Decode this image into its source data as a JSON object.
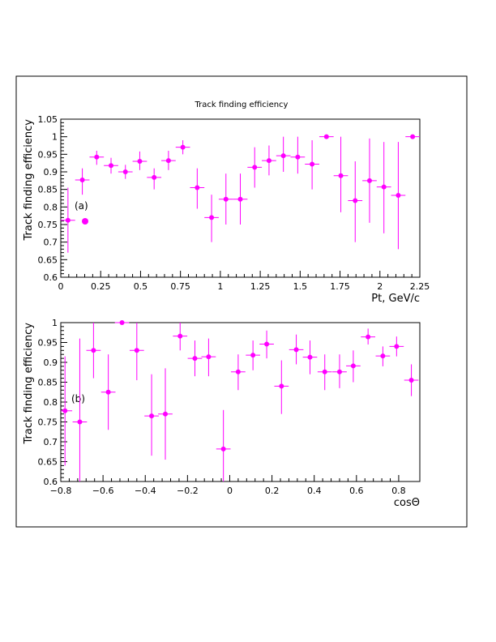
{
  "figure_title": "Track finding efficiency",
  "colors": {
    "marker": "#ff00ff",
    "axis": "#000000",
    "background": "#ffffff"
  },
  "chart_data": [
    {
      "type": "scatter",
      "panel_label": "(a)",
      "xlabel": "Pt, GeV/c",
      "ylabel": "Track finding efficiency",
      "xlim": [
        0,
        2.25
      ],
      "ylim": [
        0.6,
        1.05
      ],
      "xticks": [
        0,
        0.25,
        0.5,
        0.75,
        1,
        1.25,
        1.5,
        1.75,
        2,
        2.25
      ],
      "xtick_labels": [
        "0",
        "0.25",
        "0.5",
        "0.75",
        "1",
        "1.25",
        "1.5",
        "1.75",
        "2",
        "2.25"
      ],
      "yticks": [
        0.6,
        0.65,
        0.7,
        0.75,
        0.8,
        0.85,
        0.9,
        0.95,
        1,
        1.05
      ],
      "ytick_labels": [
        "0.6",
        "0.65",
        "0.7",
        "0.75",
        "0.8",
        "0.85",
        "0.9",
        "0.95",
        "1",
        "1.05"
      ],
      "bin_half_width": 0.045,
      "legend_marker": true,
      "points": [
        {
          "x": 0.045,
          "y": 0.762,
          "lo": 0.67,
          "hi": 0.855
        },
        {
          "x": 0.135,
          "y": 0.877,
          "lo": 0.835,
          "hi": 0.91
        },
        {
          "x": 0.225,
          "y": 0.942,
          "lo": 0.92,
          "hi": 0.96
        },
        {
          "x": 0.315,
          "y": 0.918,
          "lo": 0.895,
          "hi": 0.94
        },
        {
          "x": 0.405,
          "y": 0.9,
          "lo": 0.88,
          "hi": 0.92
        },
        {
          "x": 0.495,
          "y": 0.93,
          "lo": 0.905,
          "hi": 0.958
        },
        {
          "x": 0.585,
          "y": 0.884,
          "lo": 0.85,
          "hi": 0.91
        },
        {
          "x": 0.675,
          "y": 0.932,
          "lo": 0.905,
          "hi": 0.96
        },
        {
          "x": 0.765,
          "y": 0.97,
          "lo": 0.95,
          "hi": 0.99
        },
        {
          "x": 0.855,
          "y": 0.855,
          "lo": 0.795,
          "hi": 0.91
        },
        {
          "x": 0.945,
          "y": 0.77,
          "lo": 0.7,
          "hi": 0.835
        },
        {
          "x": 1.035,
          "y": 0.822,
          "lo": 0.75,
          "hi": 0.895
        },
        {
          "x": 1.125,
          "y": 0.822,
          "lo": 0.75,
          "hi": 0.895
        },
        {
          "x": 1.215,
          "y": 0.913,
          "lo": 0.855,
          "hi": 0.97
        },
        {
          "x": 1.305,
          "y": 0.932,
          "lo": 0.89,
          "hi": 0.975
        },
        {
          "x": 1.395,
          "y": 0.946,
          "lo": 0.9,
          "hi": 1.0
        },
        {
          "x": 1.485,
          "y": 0.942,
          "lo": 0.895,
          "hi": 1.0
        },
        {
          "x": 1.575,
          "y": 0.922,
          "lo": 0.85,
          "hi": 0.99
        },
        {
          "x": 1.665,
          "y": 1.0,
          "lo": 1.0,
          "hi": 1.0
        },
        {
          "x": 1.755,
          "y": 0.889,
          "lo": 0.785,
          "hi": 1.0
        },
        {
          "x": 1.845,
          "y": 0.818,
          "lo": 0.7,
          "hi": 0.93
        },
        {
          "x": 1.935,
          "y": 0.875,
          "lo": 0.755,
          "hi": 0.995
        },
        {
          "x": 2.025,
          "y": 0.857,
          "lo": 0.725,
          "hi": 0.985
        },
        {
          "x": 2.115,
          "y": 0.833,
          "lo": 0.68,
          "hi": 0.985
        },
        {
          "x": 2.205,
          "y": 1.0,
          "lo": 1.0,
          "hi": 1.0
        }
      ]
    },
    {
      "type": "scatter",
      "panel_label": "(b)",
      "xlabel": "cosΘ",
      "ylabel": "Track finding efficiency",
      "xlim": [
        -0.8,
        0.9
      ],
      "ylim": [
        0.6,
        1.0
      ],
      "xticks": [
        -0.8,
        -0.6,
        -0.4,
        -0.2,
        0,
        0.2,
        0.4,
        0.6,
        0.8
      ],
      "xtick_labels": [
        "−0.8",
        "−0.6",
        "−0.4",
        "−0.2",
        "0",
        "0.2",
        "0.4",
        "0.6",
        "0.8"
      ],
      "yticks": [
        0.6,
        0.65,
        0.7,
        0.75,
        0.8,
        0.85,
        0.9,
        0.95,
        1
      ],
      "ytick_labels": [
        "0.6",
        "0.65",
        "0.7",
        "0.75",
        "0.8",
        "0.85",
        "0.9",
        "0.95",
        "1"
      ],
      "bin_half_width": 0.034,
      "legend_marker": false,
      "points": [
        {
          "x": -0.78,
          "y": 0.778,
          "lo": 0.64,
          "hi": 0.915
        },
        {
          "x": -0.71,
          "y": 0.75,
          "lo": 0.6,
          "hi": 0.96
        },
        {
          "x": -0.645,
          "y": 0.93,
          "lo": 0.86,
          "hi": 1.0
        },
        {
          "x": -0.575,
          "y": 0.825,
          "lo": 0.73,
          "hi": 0.92
        },
        {
          "x": -0.51,
          "y": 1.0,
          "lo": 1.0,
          "hi": 1.0
        },
        {
          "x": -0.44,
          "y": 0.93,
          "lo": 0.855,
          "hi": 1.0
        },
        {
          "x": -0.37,
          "y": 0.765,
          "lo": 0.665,
          "hi": 0.87
        },
        {
          "x": -0.305,
          "y": 0.77,
          "lo": 0.655,
          "hi": 0.885
        },
        {
          "x": -0.235,
          "y": 0.966,
          "lo": 0.93,
          "hi": 1.0
        },
        {
          "x": -0.165,
          "y": 0.91,
          "lo": 0.865,
          "hi": 0.955
        },
        {
          "x": -0.1,
          "y": 0.914,
          "lo": 0.865,
          "hi": 0.96
        },
        {
          "x": -0.03,
          "y": 0.682,
          "lo": 0.585,
          "hi": 0.78
        },
        {
          "x": 0.04,
          "y": 0.876,
          "lo": 0.83,
          "hi": 0.92
        },
        {
          "x": 0.11,
          "y": 0.918,
          "lo": 0.88,
          "hi": 0.955
        },
        {
          "x": 0.175,
          "y": 0.946,
          "lo": 0.91,
          "hi": 0.98
        },
        {
          "x": 0.245,
          "y": 0.84,
          "lo": 0.77,
          "hi": 0.905
        },
        {
          "x": 0.315,
          "y": 0.932,
          "lo": 0.895,
          "hi": 0.97
        },
        {
          "x": 0.38,
          "y": 0.913,
          "lo": 0.87,
          "hi": 0.955
        },
        {
          "x": 0.45,
          "y": 0.876,
          "lo": 0.83,
          "hi": 0.92
        },
        {
          "x": 0.52,
          "y": 0.876,
          "lo": 0.835,
          "hi": 0.92
        },
        {
          "x": 0.585,
          "y": 0.891,
          "lo": 0.85,
          "hi": 0.93
        },
        {
          "x": 0.655,
          "y": 0.964,
          "lo": 0.945,
          "hi": 0.985
        },
        {
          "x": 0.725,
          "y": 0.916,
          "lo": 0.89,
          "hi": 0.94
        },
        {
          "x": 0.79,
          "y": 0.94,
          "lo": 0.915,
          "hi": 0.965
        },
        {
          "x": 0.86,
          "y": 0.855,
          "lo": 0.815,
          "hi": 0.895
        }
      ]
    }
  ]
}
